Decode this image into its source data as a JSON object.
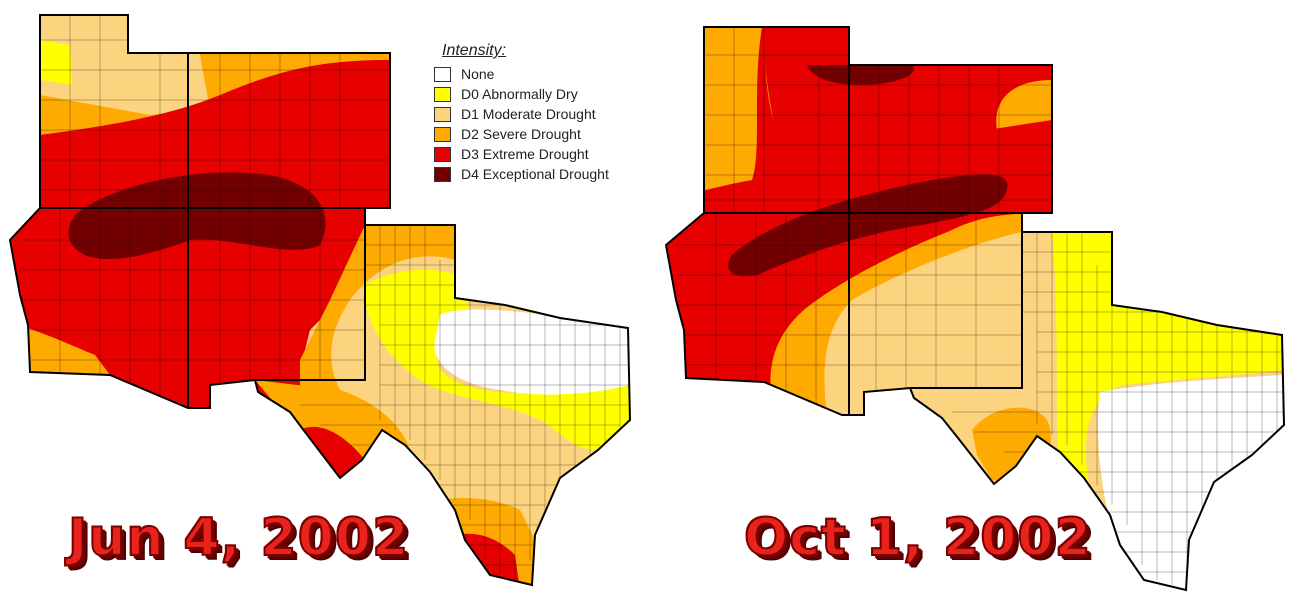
{
  "legend": {
    "title": "Intensity:",
    "items": [
      {
        "label": "None",
        "color": "#ffffff"
      },
      {
        "label": "D0 Abnormally Dry",
        "color": "#ffff00"
      },
      {
        "label": "D1 Moderate Drought",
        "color": "#fcd37f"
      },
      {
        "label": "D2 Severe Drought",
        "color": "#ffaa00"
      },
      {
        "label": "D3 Extreme Drought",
        "color": "#e60000"
      },
      {
        "label": "D4 Exceptional Drought",
        "color": "#730000"
      }
    ]
  },
  "maps": [
    {
      "date": "Jun 4, 2002"
    },
    {
      "date": "Oct 1, 2002"
    }
  ]
}
